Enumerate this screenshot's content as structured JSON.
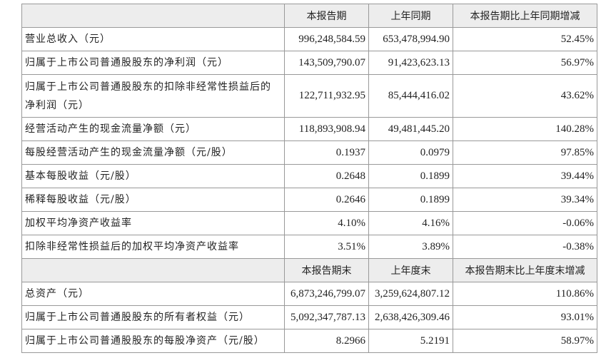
{
  "table": {
    "sections": [
      {
        "header": [
          "本报告期",
          "上年同期",
          "本报告期比上年同期增减"
        ],
        "rows": [
          [
            "营业总收入（元）",
            "996,248,584.59",
            "653,478,994.90",
            "52.45%"
          ],
          [
            "归属于上市公司普通股股东的净利润（元）",
            "143,509,790.07",
            "91,423,623.13",
            "56.97%"
          ],
          [
            "归属于上市公司普通股股东的扣除非经常性损益后的净利润（元）",
            "122,711,932.95",
            "85,444,416.02",
            "43.62%"
          ],
          [
            "经营活动产生的现金流量净额（元）",
            "118,893,908.94",
            "49,481,445.20",
            "140.28%"
          ],
          [
            "每股经营活动产生的现金流量净额（元/股）",
            "0.1937",
            "0.0979",
            "97.85%"
          ],
          [
            "基本每股收益（元/股）",
            "0.2648",
            "0.1899",
            "39.44%"
          ],
          [
            "稀释每股收益（元/股）",
            "0.2646",
            "0.1899",
            "39.34%"
          ],
          [
            "加权平均净资产收益率",
            "4.10%",
            "4.16%",
            "-0.06%"
          ],
          [
            "扣除非经常性损益后的加权平均净资产收益率",
            "3.51%",
            "3.89%",
            "-0.38%"
          ]
        ]
      },
      {
        "header": [
          "本报告期末",
          "上年度末",
          "本报告期末比上年度末增减"
        ],
        "rows": [
          [
            "总资产（元）",
            "6,873,246,799.07",
            "3,259,624,807.12",
            "110.86%"
          ],
          [
            "归属于上市公司普通股股东的所有者权益（元）",
            "5,092,347,787.13",
            "2,638,426,309.46",
            "93.01%"
          ],
          [
            "归属于上市公司普通股股东的每股净资产（元/股）",
            "8.2966",
            "5.2191",
            "58.97%"
          ]
        ]
      }
    ]
  }
}
